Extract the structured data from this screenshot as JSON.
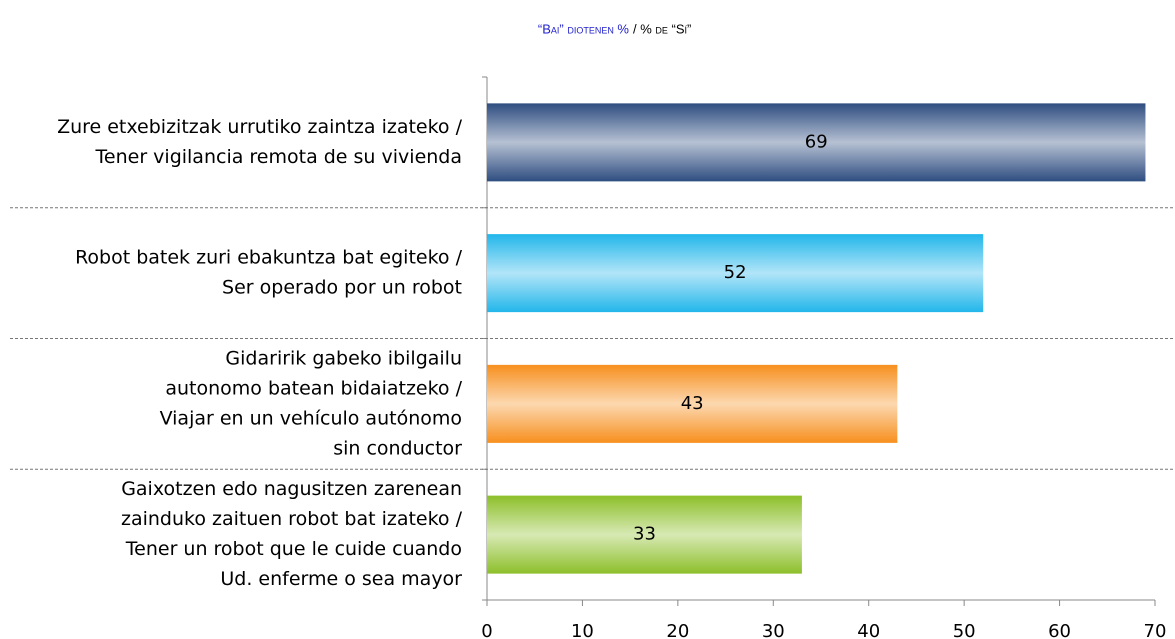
{
  "chart_data": {
    "type": "bar",
    "orientation": "horizontal",
    "title": "“Bai” diotenen %",
    "title_es": "/ % de “Sí”",
    "categories": [
      [
        "Zure etxebizitzak urrutiko zaintza izateko  /",
        "Tener vigilancia remota de su vivienda"
      ],
      [
        "Robot batek zuri ebakuntza bat egiteko  /",
        "Ser operado por un robot"
      ],
      [
        "Gidaririk gabeko ibilgailu",
        "autonomo batean bidaiatzeko  /",
        "Viajar en un vehículo autónomo",
        "sin conductor"
      ],
      [
        "Gaixotzen edo nagusitzen zarenean",
        "zainduko zaituen robot bat izateko  /",
        "Tener un robot que le cuide cuando",
        "Ud. enferme o sea mayor"
      ]
    ],
    "values": [
      69,
      52,
      43,
      33
    ],
    "colors": [
      "#2e4d80",
      "#22b6ea",
      "#f78f1e",
      "#8dbf2a"
    ],
    "xlim": [
      0,
      70
    ],
    "xticks": [
      0,
      10,
      20,
      30,
      40,
      50,
      60,
      70
    ]
  }
}
